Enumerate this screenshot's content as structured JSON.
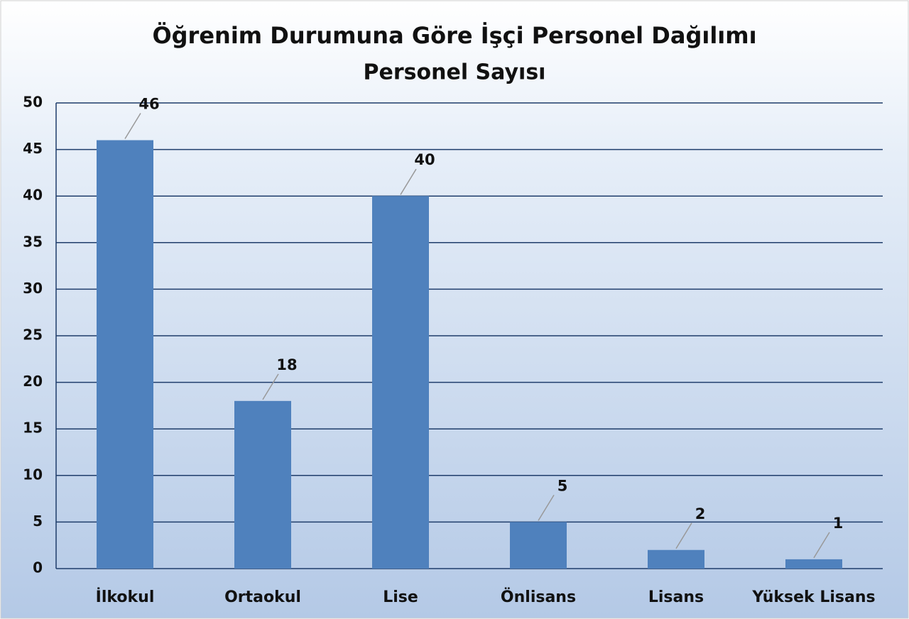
{
  "chart_data": {
    "type": "bar",
    "title": "Öğrenim Durumuna Göre İşçi Personel Dağılımı",
    "subtitle": "Personel Sayısı",
    "categories": [
      "İlkokul",
      "Ortaokul",
      "Lise",
      "Önlisans",
      "Lisans",
      "Yüksek Lisans"
    ],
    "values": [
      46,
      18,
      40,
      5,
      2,
      1
    ],
    "color": "#4f81bd",
    "ylim": [
      0,
      50
    ],
    "yticks": [
      0,
      5,
      10,
      15,
      20,
      25,
      30,
      35,
      40,
      45,
      50
    ],
    "grid": true
  }
}
